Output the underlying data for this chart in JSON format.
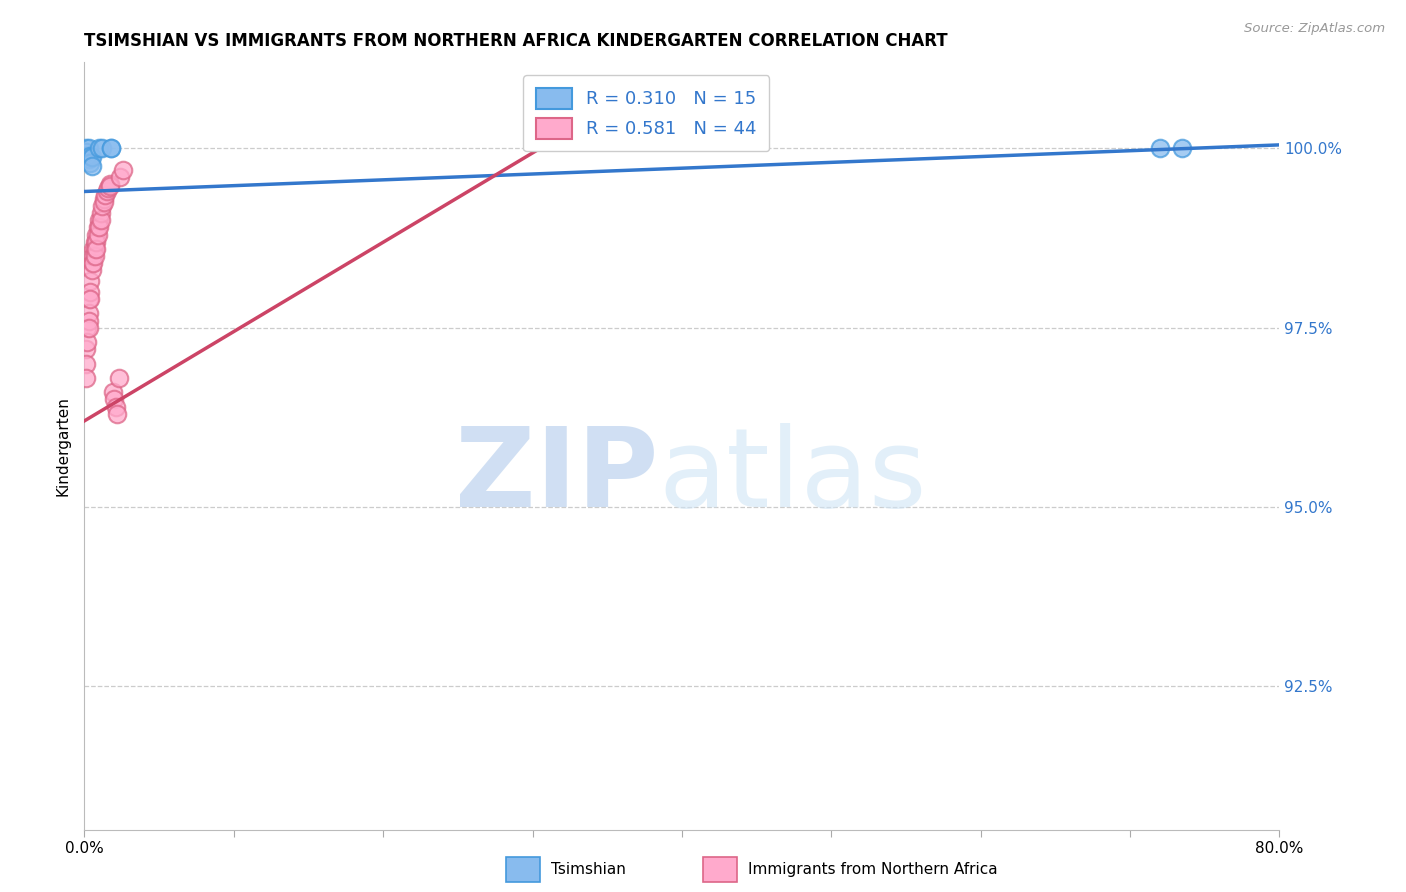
{
  "title": "TSIMSHIAN VS IMMIGRANTS FROM NORTHERN AFRICA KINDERGARTEN CORRELATION CHART",
  "source": "Source: ZipAtlas.com",
  "ylabel": "Kindergarten",
  "ytick_labels": [
    "100.0%",
    "97.5%",
    "95.0%",
    "92.5%"
  ],
  "ytick_values": [
    1.0,
    0.975,
    0.95,
    0.925
  ],
  "xlim": [
    0.0,
    0.8
  ],
  "ylim": [
    0.905,
    1.012
  ],
  "legend_label_blue": "R = 0.310   N = 15",
  "legend_label_pink": "R = 0.581   N = 44",
  "blue_color": "#88bbee",
  "pink_color": "#ffaacc",
  "blue_edge_color": "#4499dd",
  "pink_edge_color": "#dd6688",
  "blue_line_color": "#3377cc",
  "pink_line_color": "#cc4466",
  "watermark_zip_color": "#c5d8f0",
  "watermark_atlas_color": "#d0e5f5",
  "blue_line_x": [
    0.0,
    0.8
  ],
  "blue_line_y": [
    0.994,
    1.0005
  ],
  "pink_line_x": [
    0.0,
    0.305
  ],
  "pink_line_y": [
    0.962,
    1.0
  ],
  "tsimshian_x": [
    0.001,
    0.001,
    0.002,
    0.003,
    0.003,
    0.004,
    0.004,
    0.005,
    0.005,
    0.01,
    0.012,
    0.018,
    0.018,
    0.72,
    0.735
  ],
  "tsimshian_y": [
    1.0,
    0.9995,
    0.999,
    1.0,
    0.9985,
    0.999,
    0.998,
    0.9988,
    0.9975,
    1.0,
    1.0,
    1.0,
    1.0,
    1.0,
    1.0
  ],
  "pink_x": [
    0.001,
    0.001,
    0.001,
    0.002,
    0.002,
    0.003,
    0.003,
    0.003,
    0.003,
    0.004,
    0.004,
    0.004,
    0.005,
    0.005,
    0.006,
    0.006,
    0.006,
    0.007,
    0.007,
    0.007,
    0.008,
    0.008,
    0.008,
    0.009,
    0.009,
    0.01,
    0.01,
    0.011,
    0.011,
    0.012,
    0.013,
    0.013,
    0.014,
    0.015,
    0.016,
    0.017,
    0.017,
    0.019,
    0.02,
    0.021,
    0.022,
    0.023,
    0.024,
    0.026
  ],
  "pink_y": [
    0.972,
    0.97,
    0.968,
    0.975,
    0.973,
    0.979,
    0.977,
    0.976,
    0.975,
    0.9815,
    0.98,
    0.979,
    0.984,
    0.983,
    0.986,
    0.985,
    0.984,
    0.987,
    0.986,
    0.985,
    0.988,
    0.987,
    0.986,
    0.989,
    0.988,
    0.99,
    0.989,
    0.991,
    0.99,
    0.992,
    0.993,
    0.9925,
    0.9935,
    0.994,
    0.9945,
    0.995,
    0.9948,
    0.966,
    0.965,
    0.964,
    0.963,
    0.968,
    0.996,
    0.997
  ]
}
